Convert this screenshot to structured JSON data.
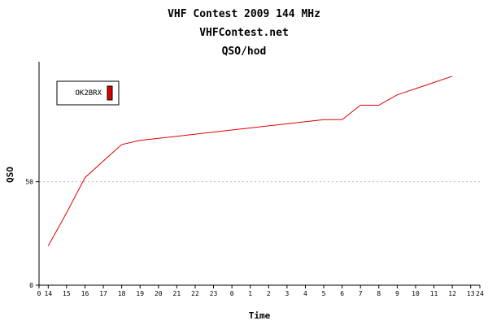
{
  "chart_data": {
    "type": "line",
    "title": "VHF Contest 2009 144 MHz",
    "subtitle": "VHFContest.net",
    "subtitle2": "QSO/hod",
    "xlabel": "Time",
    "ylabel": "QSO",
    "x_ticks": [
      "0",
      "14",
      "15",
      "16",
      "17",
      "18",
      "19",
      "20",
      "21",
      "22",
      "23",
      "0",
      "1",
      "2",
      "3",
      "4",
      "5",
      "6",
      "7",
      "8",
      "9",
      "10",
      "11",
      "12",
      "13",
      "24"
    ],
    "x_tick_positions": [
      0,
      0.5,
      1.5,
      2.5,
      3.5,
      4.5,
      5.5,
      6.5,
      7.5,
      8.5,
      9.5,
      10.5,
      11.5,
      12.5,
      13.5,
      14.5,
      15.5,
      16.5,
      17.5,
      18.5,
      19.5,
      20.5,
      21.5,
      22.5,
      23.5,
      24
    ],
    "xlim": [
      0,
      24
    ],
    "ylim": [
      0,
      108
    ],
    "y_ticks": [
      0,
      50
    ],
    "grid": "dashed horizontal at 50",
    "legend_position": "top-left",
    "series": [
      {
        "name": "OK2BRX",
        "color": "#e00000",
        "x": [
          0.5,
          1.5,
          2.5,
          3.5,
          4.5,
          5.5,
          6.5,
          7.5,
          8.5,
          9.5,
          10.5,
          11.5,
          12.5,
          13.5,
          14.5,
          15.5,
          16.5,
          17.5,
          18.5,
          19.5,
          20.5,
          21.5,
          22.5
        ],
        "values": [
          19,
          35,
          52,
          60,
          68,
          70,
          71,
          72,
          73,
          74,
          75,
          76,
          77,
          78,
          79,
          80,
          80,
          87,
          87,
          92,
          95,
          98,
          101
        ]
      }
    ]
  }
}
